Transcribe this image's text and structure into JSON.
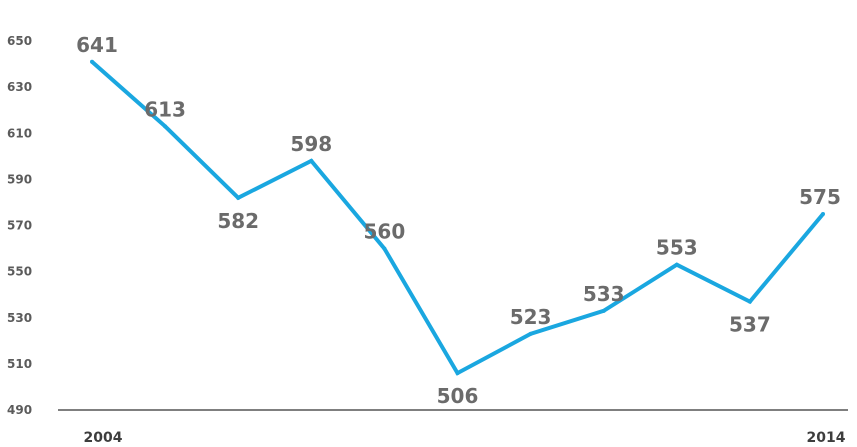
{
  "chart_data": {
    "type": "line",
    "x": [
      2004,
      2005,
      2006,
      2007,
      2008,
      2009,
      2010,
      2011,
      2012,
      2013,
      2014
    ],
    "values": [
      641,
      613,
      582,
      598,
      560,
      506,
      523,
      533,
      553,
      537,
      575
    ],
    "data_labels": [
      "641",
      "613",
      "582",
      "598",
      "560",
      "506",
      "523",
      "533",
      "553",
      "537",
      "575"
    ],
    "x_tick_labels": [
      "2004",
      "2014"
    ],
    "y_ticks": [
      "490",
      "510",
      "530",
      "550",
      "570",
      "590",
      "610",
      "630",
      "650"
    ],
    "ylim": [
      490,
      650
    ],
    "title": "",
    "xlabel": "",
    "ylabel": "",
    "grid": false,
    "line_color": "#1aa7e0"
  }
}
